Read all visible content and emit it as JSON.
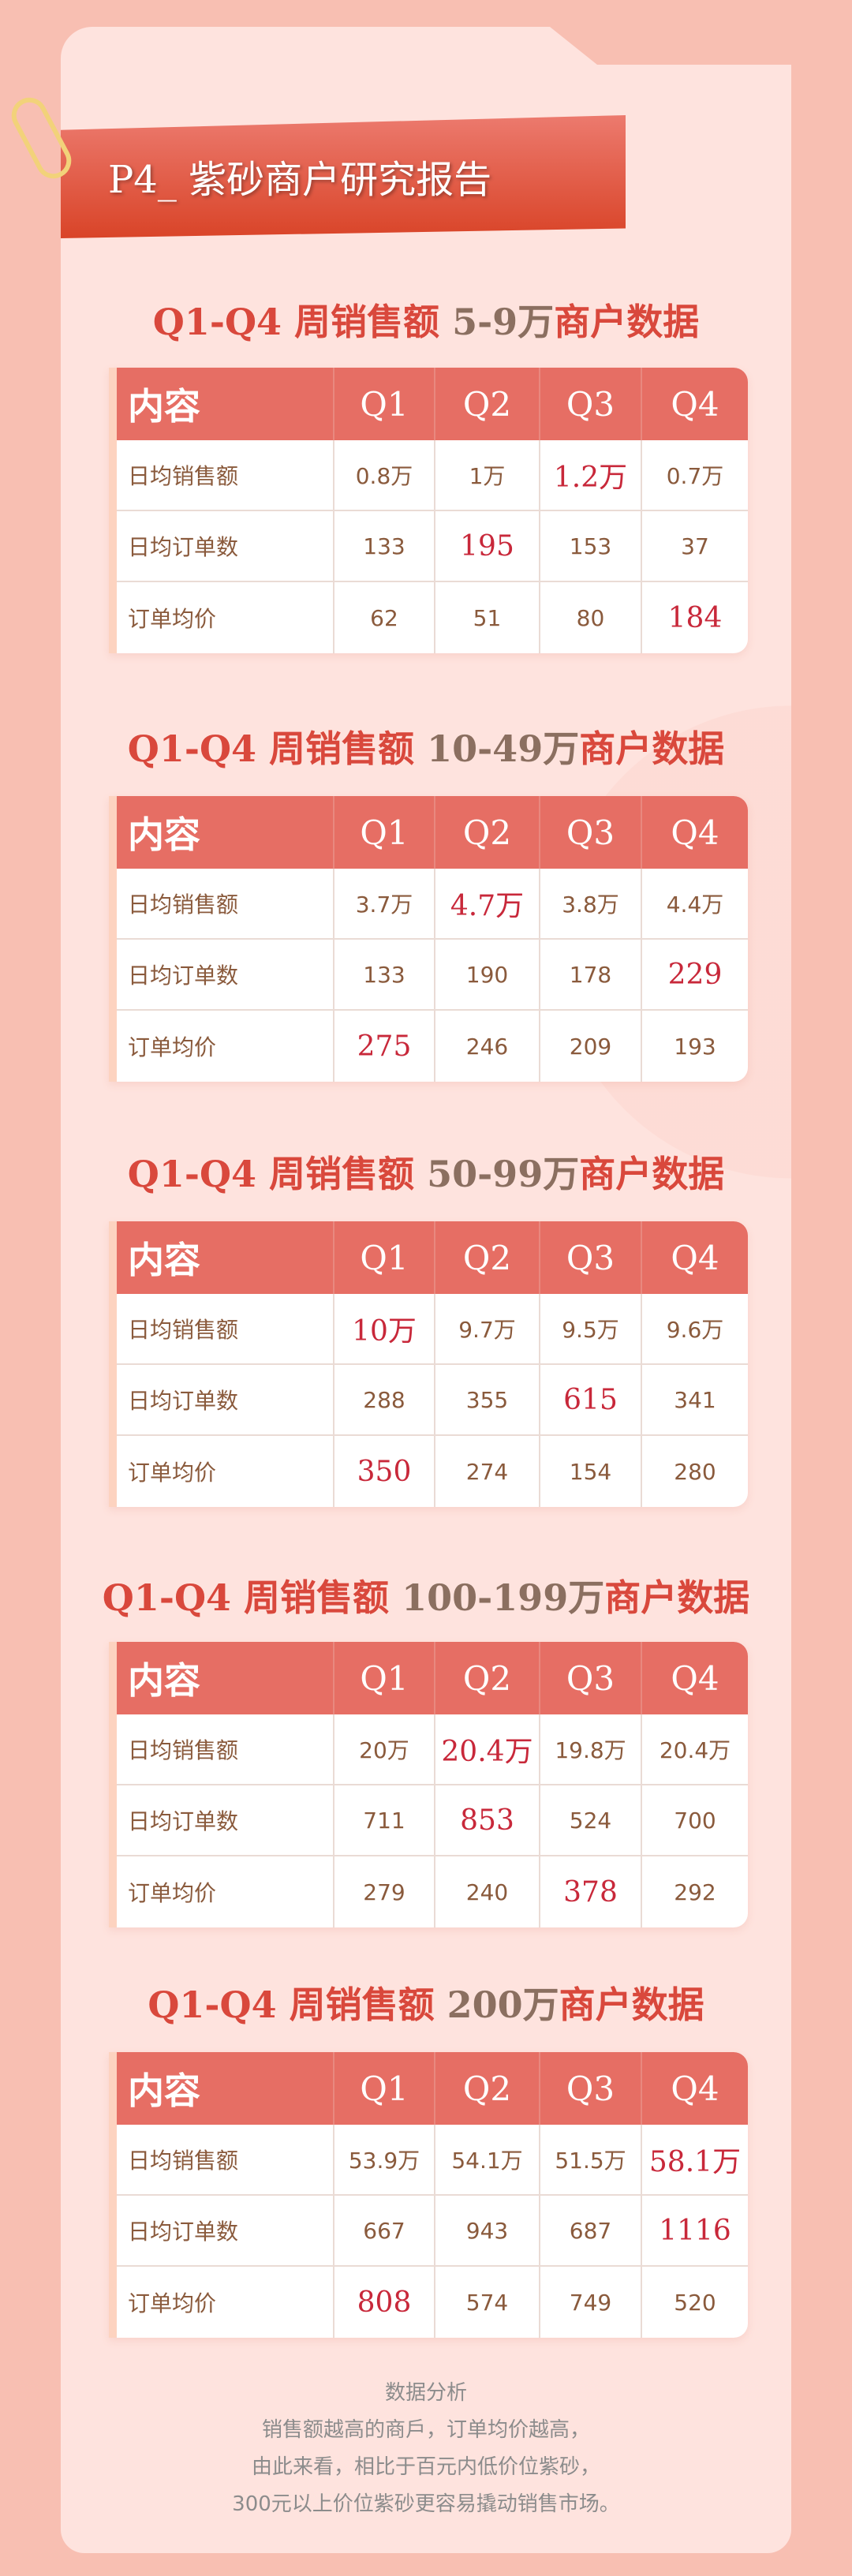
{
  "header": {
    "title": "P4_ 紫砂商户研究报告"
  },
  "columns": [
    "内容",
    "Q1",
    "Q2",
    "Q3",
    "Q4"
  ],
  "sections": [
    {
      "title_prefix": "Q1-Q4 周销售额 ",
      "range": "5-9万",
      "title_suffix": "商户数据",
      "rows": [
        {
          "label": "日均销售额",
          "values": [
            "0.8万",
            "1万",
            "1.2万",
            "0.7万"
          ],
          "highlight": 2
        },
        {
          "label": "日均订单数",
          "values": [
            "133",
            "195",
            "153",
            "37"
          ],
          "highlight": 1
        },
        {
          "label": "订单均价",
          "values": [
            "62",
            "51",
            "80",
            "184"
          ],
          "highlight": 3
        }
      ]
    },
    {
      "title_prefix": "Q1-Q4 周销售额 ",
      "range": "10-49万",
      "title_suffix": "商户数据",
      "rows": [
        {
          "label": "日均销售额",
          "values": [
            "3.7万",
            "4.7万",
            "3.8万",
            "4.4万"
          ],
          "highlight": 1
        },
        {
          "label": "日均订单数",
          "values": [
            "133",
            "190",
            "178",
            "229"
          ],
          "highlight": 3
        },
        {
          "label": "订单均价",
          "values": [
            "275",
            "246",
            "209",
            "193"
          ],
          "highlight": 0
        }
      ]
    },
    {
      "title_prefix": "Q1-Q4 周销售额 ",
      "range": "50-99万",
      "title_suffix": "商户数据",
      "rows": [
        {
          "label": "日均销售额",
          "values": [
            "10万",
            "9.7万",
            "9.5万",
            "9.6万"
          ],
          "highlight": 0
        },
        {
          "label": "日均订单数",
          "values": [
            "288",
            "355",
            "615",
            "341"
          ],
          "highlight": 2
        },
        {
          "label": "订单均价",
          "values": [
            "350",
            "274",
            "154",
            "280"
          ],
          "highlight": 0
        }
      ]
    },
    {
      "title_prefix": "Q1-Q4 周销售额 ",
      "range": "100-199万",
      "title_suffix": "商户数据",
      "rows": [
        {
          "label": "日均销售额",
          "values": [
            "20万",
            "20.4万",
            "19.8万",
            "20.4万"
          ],
          "highlight": 1
        },
        {
          "label": "日均订单数",
          "values": [
            "711",
            "853",
            "524",
            "700"
          ],
          "highlight": 1
        },
        {
          "label": "订单均价",
          "values": [
            "279",
            "240",
            "378",
            "292"
          ],
          "highlight": 2
        }
      ]
    },
    {
      "title_prefix": "Q1-Q4 周销售额 ",
      "range": "200万",
      "title_suffix": "商户数据",
      "rows": [
        {
          "label": "日均销售额",
          "values": [
            "53.9万",
            "54.1万",
            "51.5万",
            "58.1万"
          ],
          "highlight": 3
        },
        {
          "label": "日均订单数",
          "values": [
            "667",
            "943",
            "687",
            "1116"
          ],
          "highlight": 3
        },
        {
          "label": "订单均价",
          "values": [
            "808",
            "574",
            "749",
            "520"
          ],
          "highlight": 0
        }
      ]
    }
  ],
  "analysis": {
    "title": "数据分析",
    "lines": [
      "销售额越高的商戶，订单均价越高，",
      "由此来看，相比于百元内低价位紫砂，",
      "300元以上价位紫砂更容易撬动销售市场。"
    ]
  },
  "colors": {
    "background": "#f8bfb2",
    "card": "#fee3de",
    "header": "#e66e64",
    "highlight": "#c8283a",
    "title": "#d9483c"
  }
}
